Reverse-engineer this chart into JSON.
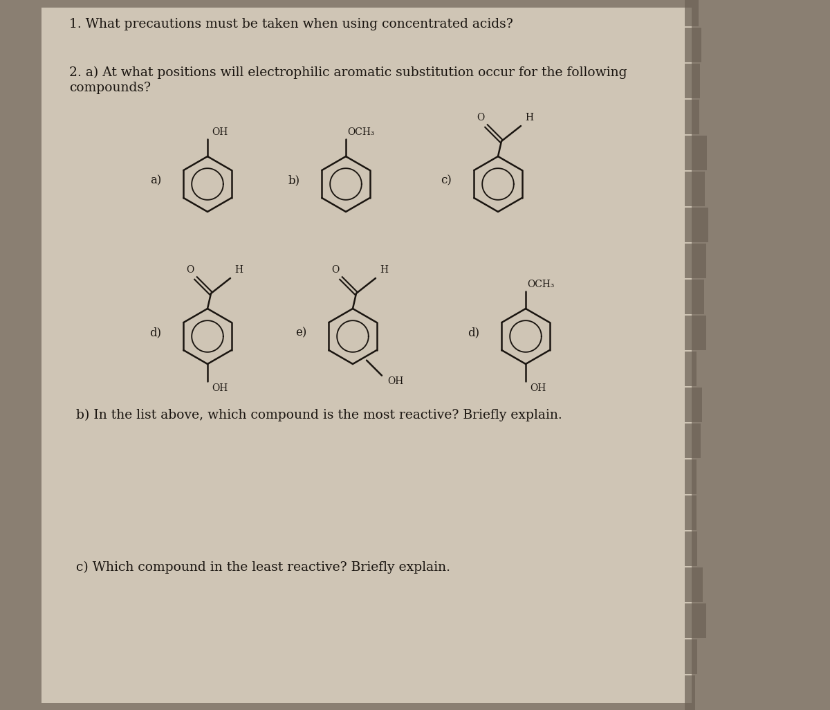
{
  "bg_color": "#8a7f72",
  "paper_color": "#cfc5b5",
  "text_color": "#1a1510",
  "q1_text": "1. What precautions must be taken when using concentrated acids?",
  "q2_line1": "2. a) At what positions will electrophilic aromatic substitution occur for the following",
  "q2_line2": "compounds?",
  "qb_text": "b) In the list above, which compound is the most reactive? Briefly explain.",
  "qc_text": "c) Which compound in the least reactive? Briefly explain.",
  "font_size": 13.5
}
